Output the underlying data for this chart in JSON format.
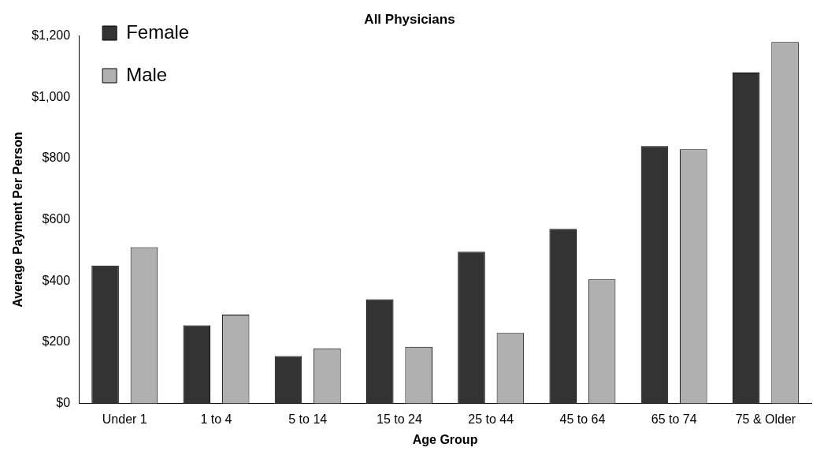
{
  "chart_data": {
    "type": "bar",
    "title": "All Physicians",
    "xlabel": "Age Group",
    "ylabel": "Average Payment Per Person",
    "categories": [
      "Under 1",
      "1 to 4",
      "5 to 14",
      "15 to 24",
      "25 to 44",
      "45 to 64",
      "65 to 74",
      "75 & Older"
    ],
    "series": [
      {
        "name": "Female",
        "color": "#333333",
        "values": [
          450,
          255,
          155,
          340,
          495,
          570,
          840,
          1080
        ]
      },
      {
        "name": "Male",
        "color": "#b0b0b0",
        "values": [
          510,
          290,
          180,
          185,
          230,
          405,
          830,
          1180
        ]
      }
    ],
    "ylim": [
      0,
      1200
    ],
    "yticks": [
      {
        "value": 0,
        "label": "$0"
      },
      {
        "value": 200,
        "label": "$200"
      },
      {
        "value": 400,
        "label": "$400"
      },
      {
        "value": 600,
        "label": "$600"
      },
      {
        "value": 800,
        "label": "$800"
      },
      {
        "value": 1000,
        "label": "$1,000"
      },
      {
        "value": 1200,
        "label": "$1,200"
      }
    ],
    "grid": false,
    "legend": "top left"
  }
}
